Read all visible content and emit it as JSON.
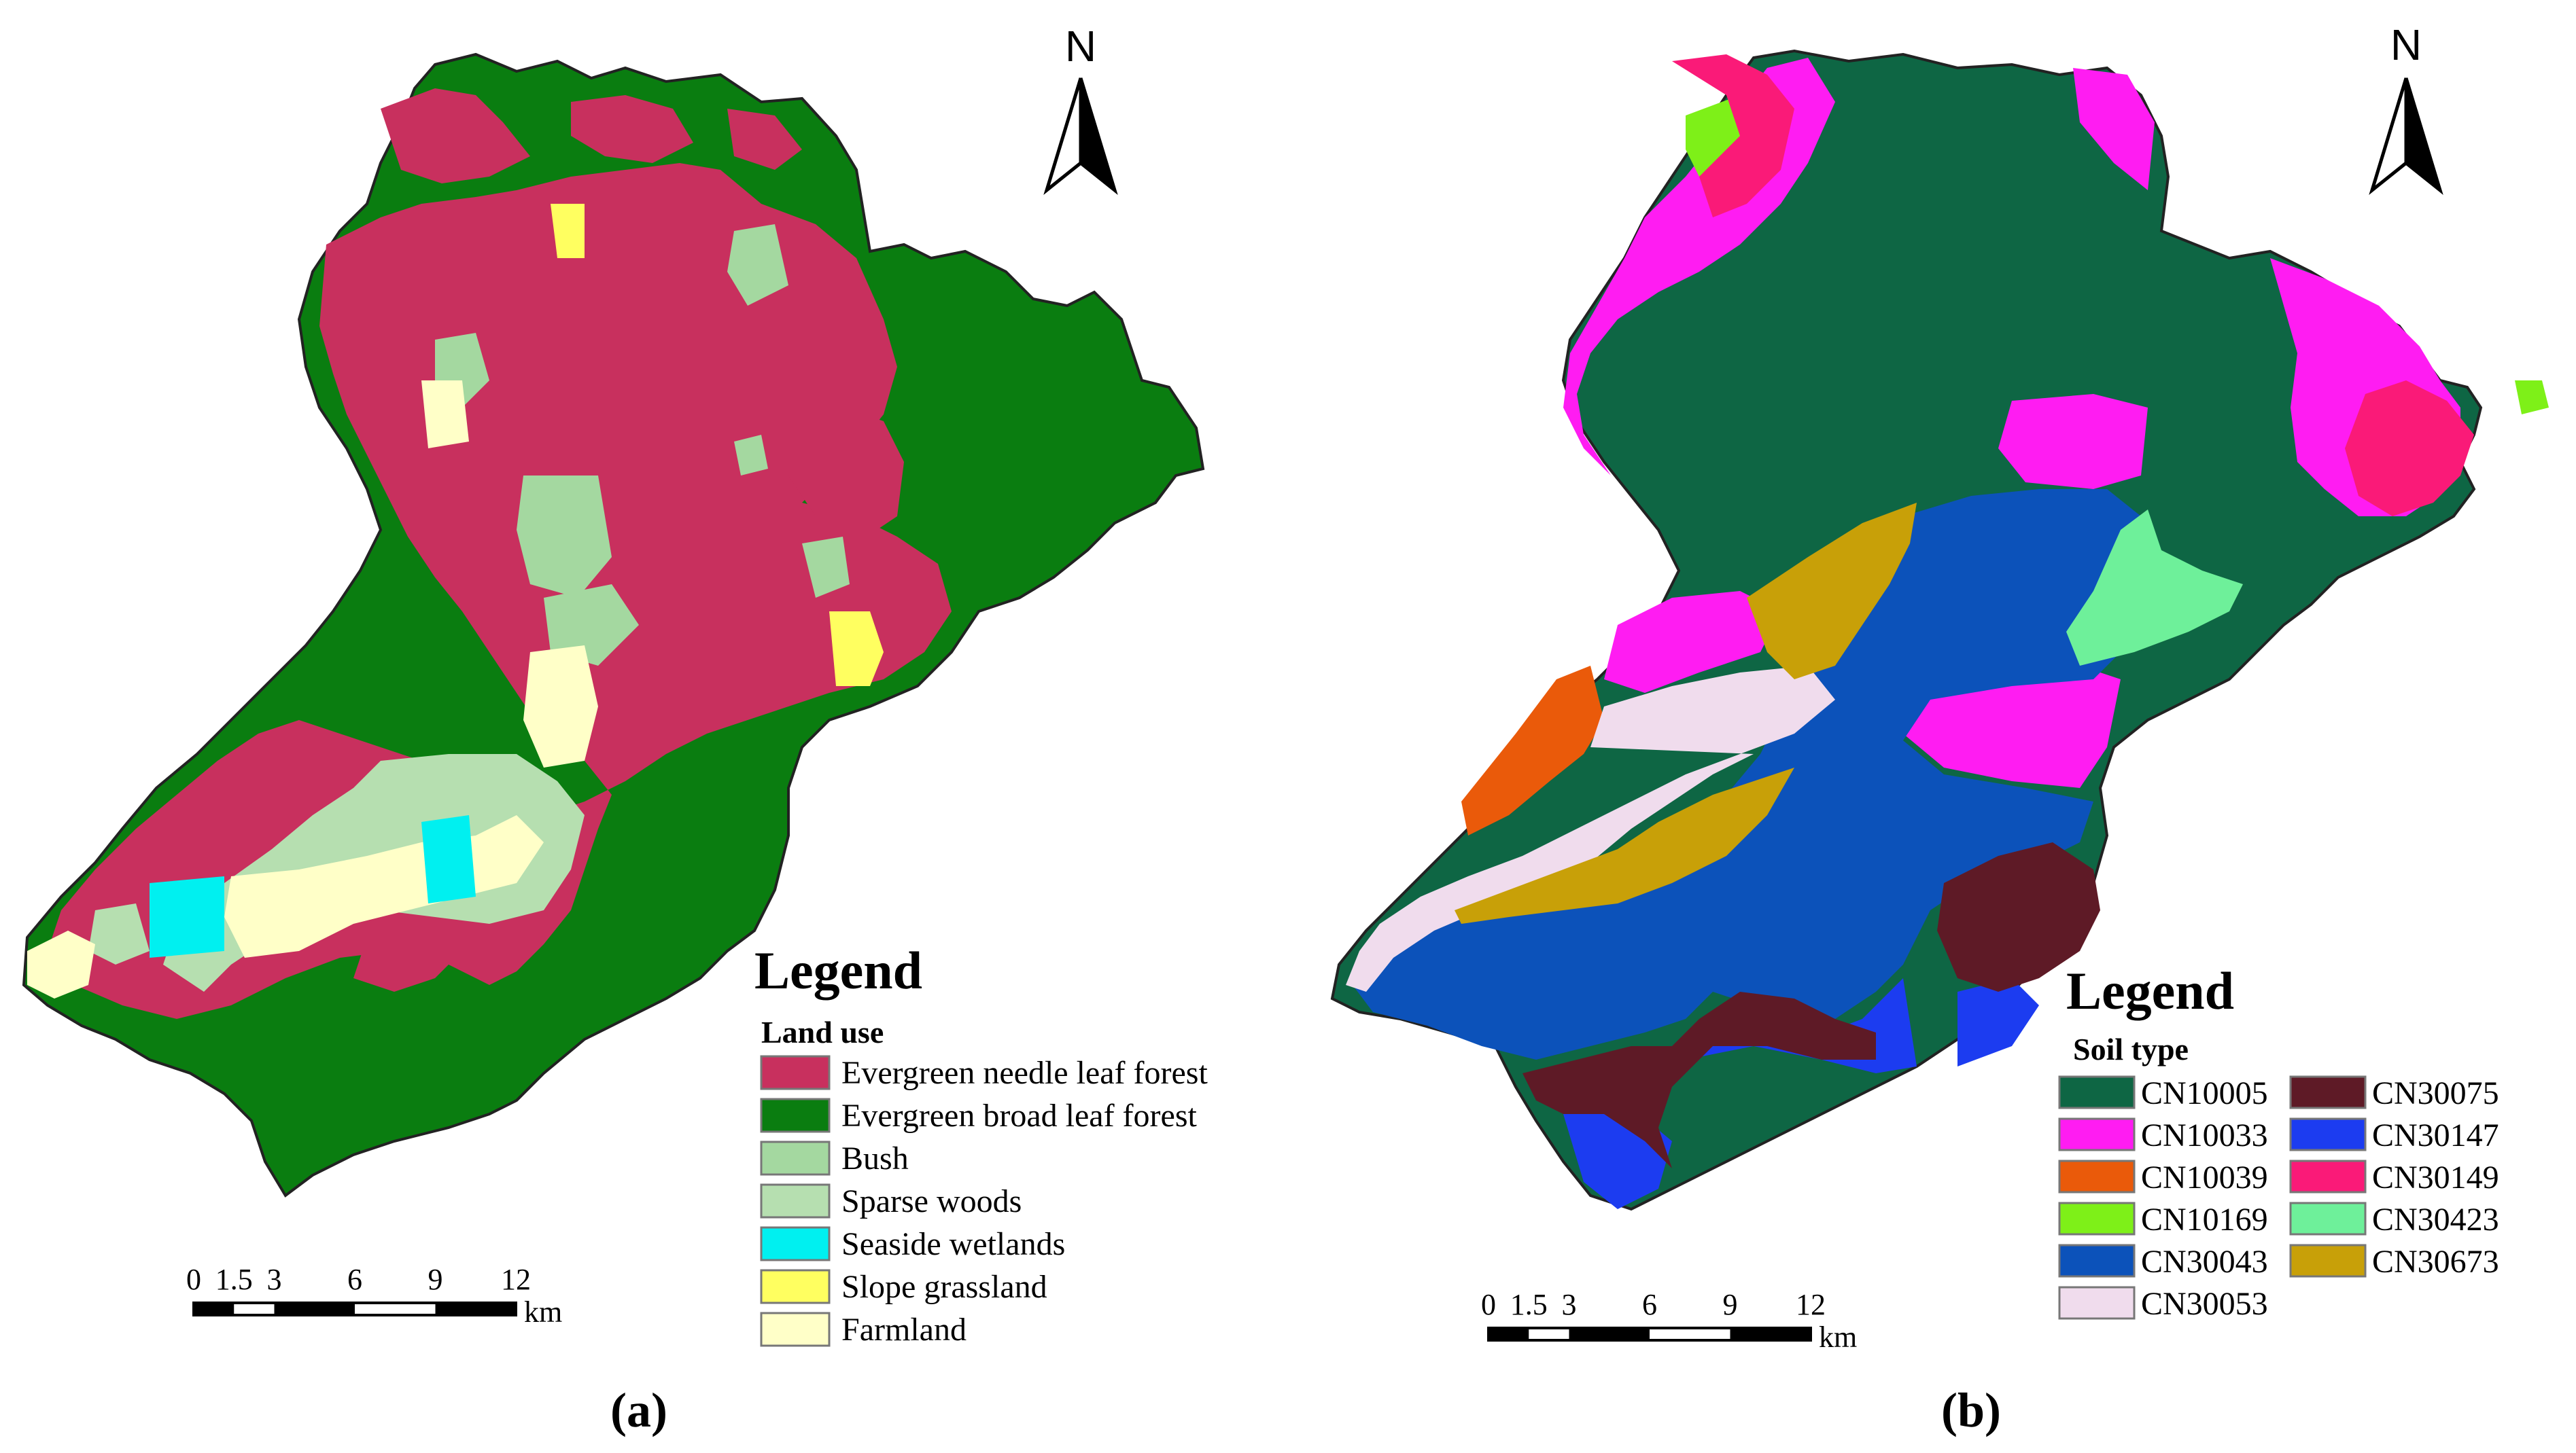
{
  "panels": [
    {
      "caption": "(a)",
      "north_label": "N",
      "legend": {
        "title": "Legend",
        "subtitle": "Land use",
        "items": [
          {
            "label": "Evergreen needle leaf forest",
            "color": "#c8305e"
          },
          {
            "label": "Evergreen broad leaf forest",
            "color": "#0a7d10"
          },
          {
            "label": "Bush",
            "color": "#a4d8a0"
          },
          {
            "label": "Sparse woods",
            "color": "#b6dfb0"
          },
          {
            "label": "Seaside wetlands",
            "color": "#00f0f0"
          },
          {
            "label": "Slope grassland",
            "color": "#ffff60"
          },
          {
            "label": "Farmland",
            "color": "#ffffc8"
          }
        ]
      },
      "scale_bar": {
        "ticks": [
          "0",
          "1.5",
          "3",
          "6",
          "9",
          "12"
        ],
        "unit": "km"
      }
    },
    {
      "caption": "(b)",
      "north_label": "N",
      "legend": {
        "title": "Legend",
        "subtitle": "Soil type",
        "items": [
          {
            "label": "CN10005",
            "color": "#0e6644"
          },
          {
            "label": "CN10033",
            "color": "#ff1cf2"
          },
          {
            "label": "CN10039",
            "color": "#ea5a0a"
          },
          {
            "label": "CN10169",
            "color": "#7ef018"
          },
          {
            "label": "CN30043",
            "color": "#0c52ba"
          },
          {
            "label": "CN30053",
            "color": "#f0dced"
          },
          {
            "label": "CN30075",
            "color": "#5e1a26"
          },
          {
            "label": "CN30147",
            "color": "#1c3cf0"
          },
          {
            "label": "CN30149",
            "color": "#fa1a78"
          },
          {
            "label": "CN30423",
            "color": "#6ef09a"
          },
          {
            "label": "CN30673",
            "color": "#c8a008"
          }
        ]
      },
      "scale_bar": {
        "ticks": [
          "0",
          "1.5",
          "3",
          "6",
          "9",
          "12"
        ],
        "unit": "km"
      }
    }
  ]
}
